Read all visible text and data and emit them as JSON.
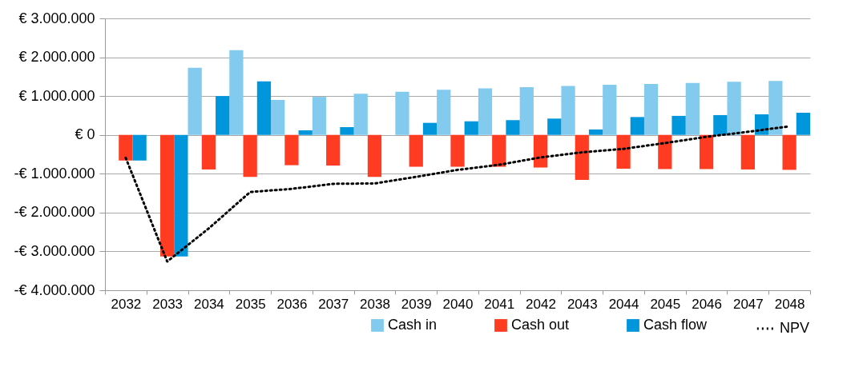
{
  "chart_data": {
    "type": "bar",
    "categories": [
      "2032",
      "2033",
      "2034",
      "2035",
      "2036",
      "2037",
      "2038",
      "2039",
      "2040",
      "2041",
      "2042",
      "2043",
      "2044",
      "2045",
      "2046",
      "2047",
      "2048"
    ],
    "series": [
      {
        "name": "Cash in",
        "color": "#83caef",
        "values": [
          0,
          0,
          1730000,
          2180000,
          900000,
          980000,
          1060000,
          1110000,
          1160000,
          1200000,
          1230000,
          1260000,
          1290000,
          1310000,
          1340000,
          1370000,
          1390000
        ]
      },
      {
        "name": "Cash out",
        "color": "#ff3b22",
        "values": [
          -660000,
          -3130000,
          -890000,
          -1080000,
          -780000,
          -790000,
          -1080000,
          -820000,
          -820000,
          -820000,
          -840000,
          -1160000,
          -870000,
          -880000,
          -880000,
          -890000,
          -900000
        ]
      },
      {
        "name": "Cash flow",
        "color": "#0096dc",
        "values": [
          -660000,
          -3130000,
          1000000,
          1380000,
          120000,
          200000,
          0,
          310000,
          350000,
          380000,
          420000,
          140000,
          460000,
          490000,
          510000,
          530000,
          570000
        ]
      },
      {
        "name": "NPV",
        "type": "line",
        "color": "#000000",
        "line_style": "dotted",
        "values": [
          -590000,
          -3260000,
          -2410000,
          -1470000,
          -1390000,
          -1260000,
          -1250000,
          -1080000,
          -900000,
          -770000,
          -580000,
          -450000,
          -360000,
          -210000,
          -50000,
          80000,
          220000
        ]
      }
    ],
    "ylim": [
      -4000000,
      3000000
    ],
    "yticks": [
      {
        "value": -4000000,
        "label": "-€ 4.000.000"
      },
      {
        "value": -3000000,
        "label": "-€ 3.000.000"
      },
      {
        "value": -2000000,
        "label": "-€ 2.000.000"
      },
      {
        "value": -1000000,
        "label": "-€ 1.000.000"
      },
      {
        "value": 0,
        "label": "€ 0"
      },
      {
        "value": 1000000,
        "label": "€ 1.000.000"
      },
      {
        "value": 2000000,
        "label": "€ 2.000.000"
      },
      {
        "value": 3000000,
        "label": "€ 3.000.000"
      }
    ],
    "grid": "y",
    "legend": "bottom"
  }
}
